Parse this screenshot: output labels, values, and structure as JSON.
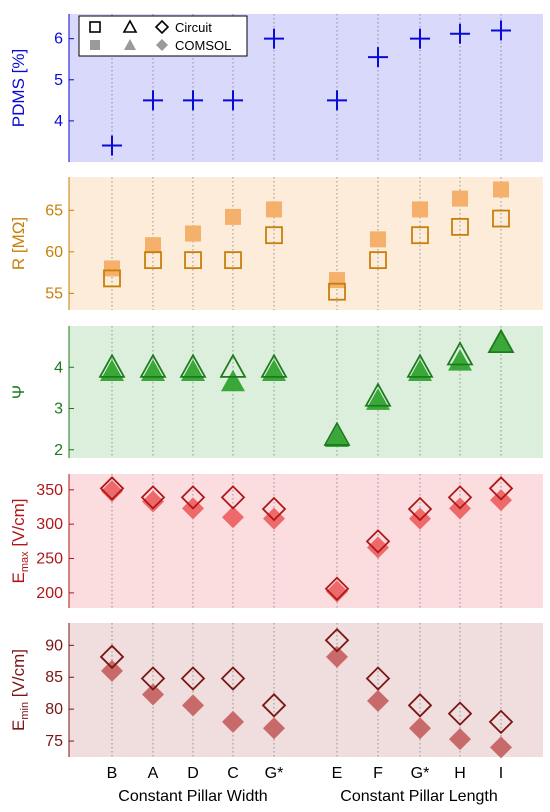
{
  "chart_data": {
    "type": "scatter",
    "categories": [
      "B",
      "A",
      "D",
      "C",
      "G*",
      "E",
      "F",
      "G*",
      "H",
      "I"
    ],
    "groups": [
      {
        "label": "Constant Pillar Width",
        "members": [
          "B",
          "A",
          "D",
          "C",
          "G*"
        ]
      },
      {
        "label": "Constant Pillar Length",
        "members": [
          "E",
          "F",
          "G*",
          "H",
          "I"
        ]
      }
    ],
    "legend": {
      "placement": "top-left",
      "entries": [
        {
          "label": "Circuit",
          "style": "hollow"
        },
        {
          "label": "COMSOL",
          "style": "filled"
        }
      ]
    },
    "panels": [
      {
        "id": "pdms",
        "ylabel": "PDMS [%]",
        "ylim": [
          3.0,
          6.6
        ],
        "yticks": [
          4,
          5,
          6
        ],
        "color": "#0a0ad6",
        "bg": "#d9d9fb",
        "marker": "plus",
        "series": [
          {
            "name": "",
            "values": [
              3.4,
              4.5,
              4.5,
              4.5,
              6.0,
              4.5,
              5.55,
              6.0,
              6.12,
              6.2
            ]
          }
        ]
      },
      {
        "id": "resistance",
        "ylabel": "R [MΩ]",
        "ylim": [
          53,
          69
        ],
        "yticks": [
          55,
          60,
          65
        ],
        "color": "#c87f0a",
        "fill": "#f5b06b",
        "bg": "#fcecd9",
        "marker": "square",
        "series": [
          {
            "name": "Circuit",
            "values": [
              56.8,
              59.0,
              59.0,
              59.0,
              62.0,
              55.2,
              59.0,
              62.0,
              63.0,
              64.0
            ]
          },
          {
            "name": "COMSOL",
            "values": [
              58.0,
              60.8,
              62.2,
              64.2,
              65.1,
              56.6,
              61.5,
              65.1,
              66.4,
              67.5
            ]
          }
        ]
      },
      {
        "id": "psi",
        "ylabel": "Ψ",
        "ylim": [
          1.8,
          5.0
        ],
        "yticks": [
          2,
          3,
          4
        ],
        "color": "#1d7a1d",
        "fill": "#39a839",
        "bg": "#dceedc",
        "marker": "triangle",
        "series": [
          {
            "name": "Circuit",
            "values": [
              4.0,
              4.0,
              4.0,
              4.0,
              4.0,
              2.35,
              3.3,
              4.0,
              4.3,
              4.6
            ]
          },
          {
            "name": "COMSOL",
            "values": [
              3.9,
              3.9,
              3.9,
              3.65,
              3.9,
              2.3,
              3.2,
              3.9,
              4.15,
              4.6
            ]
          }
        ]
      },
      {
        "id": "emax",
        "ylabel_main": "E",
        "ylabel_sub": "max",
        "ylabel_rest": " [V/cm]",
        "ylim": [
          178,
          373
        ],
        "yticks": [
          200,
          250,
          300,
          350
        ],
        "color": "#b01818",
        "fill": "#ee6a6a",
        "bg": "#fbdde0",
        "marker": "diamond",
        "series": [
          {
            "name": "Circuit",
            "values": [
              352,
              339,
              339,
              339,
              322,
              206,
              275,
              322,
              339,
              352
            ]
          },
          {
            "name": "COMSOL",
            "values": [
              348,
              333,
              323,
              310,
              308,
              202,
              266,
              308,
              323,
              335
            ]
          }
        ]
      },
      {
        "id": "emin",
        "ylabel_main": "E",
        "ylabel_sub": "min",
        "ylabel_rest": " [V/cm]",
        "ylim": [
          72.5,
          93.5
        ],
        "yticks": [
          75,
          80,
          85,
          90
        ],
        "color": "#7a1616",
        "fill": "#c96a6a",
        "bg": "#f0dddd",
        "marker": "diamond",
        "series": [
          {
            "name": "Circuit",
            "values": [
              88.2,
              84.8,
              84.8,
              84.8,
              80.6,
              90.8,
              84.8,
              80.6,
              79.3,
              78.0
            ]
          },
          {
            "name": "COMSOL",
            "values": [
              86.0,
              82.3,
              80.6,
              78.0,
              77.0,
              88.2,
              81.3,
              77.0,
              75.3,
              74.0
            ]
          }
        ]
      }
    ]
  }
}
